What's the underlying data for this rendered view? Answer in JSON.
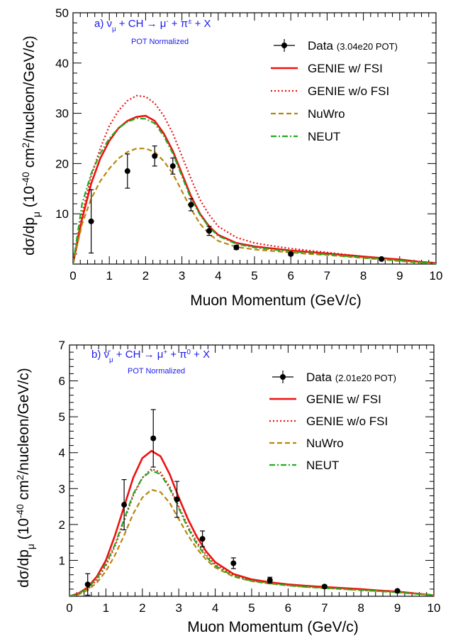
{
  "chart_data": [
    {
      "type": "line",
      "panel_label": "a)",
      "title_segments": [
        {
          "t": "ν",
          "s": "n"
        },
        {
          "t": "μ",
          "s": "sub"
        },
        {
          "t": " + CH → μ",
          "s": "n"
        },
        {
          "t": "-",
          "s": "sup"
        },
        {
          "t": " + π",
          "s": "n"
        },
        {
          "t": "±",
          "s": "sup"
        },
        {
          "t": " + X",
          "s": "n"
        }
      ],
      "subtitle": "POT Normalized",
      "xlabel": "Muon Momentum (GeV/c)",
      "ylabel_segments": [
        {
          "t": "dσ/dp",
          "s": "n"
        },
        {
          "t": "μ",
          "s": "sub"
        },
        {
          "t": "  (10",
          "s": "n"
        },
        {
          "t": "-40",
          "s": "sup"
        },
        {
          "t": " cm",
          "s": "n"
        },
        {
          "t": "2",
          "s": "sup"
        },
        {
          "t": "/nucleon/GeV/c)",
          "s": "n"
        }
      ],
      "xlim": [
        0,
        10
      ],
      "ylim": [
        0,
        50
      ],
      "x_ticks": [
        0,
        1,
        2,
        3,
        4,
        5,
        6,
        7,
        8,
        9,
        10
      ],
      "y_ticks": [
        10,
        20,
        30,
        40,
        50
      ],
      "x_tick_labels": [
        "0",
        "1",
        "2",
        "3",
        "4",
        "5",
        "6",
        "7",
        "8",
        "9",
        "10"
      ],
      "y_tick_labels": [
        "10",
        "20",
        "30",
        "40",
        "50"
      ],
      "legend_position": "top-right",
      "legend": [
        {
          "key": "data",
          "label": "Data",
          "note": "(3.04e20 POT)"
        },
        {
          "key": "genie_fsi",
          "label": "GENIE w/ FSI",
          "note": ""
        },
        {
          "key": "genie_nofsi",
          "label": "GENIE w/o FSI",
          "note": ""
        },
        {
          "key": "nuwro",
          "label": "NuWro",
          "note": ""
        },
        {
          "key": "neut",
          "label": "NEUT",
          "note": ""
        }
      ],
      "data_points": [
        {
          "x": 0.5,
          "y": 8.5,
          "err": 6.3
        },
        {
          "x": 1.5,
          "y": 18.5,
          "err": 3.4
        },
        {
          "x": 2.25,
          "y": 21.5,
          "err": 2.0
        },
        {
          "x": 2.75,
          "y": 19.5,
          "err": 1.6
        },
        {
          "x": 3.25,
          "y": 11.8,
          "err": 1.2
        },
        {
          "x": 3.75,
          "y": 6.6,
          "err": 0.9
        },
        {
          "x": 4.5,
          "y": 3.3,
          "err": 0.4
        },
        {
          "x": 6.0,
          "y": 2.0,
          "err": 0.3
        },
        {
          "x": 8.5,
          "y": 1.0,
          "err": 0.15
        }
      ],
      "series": [
        {
          "key": "genie_fsi",
          "color": "#ee1111",
          "style": "solid",
          "x": [
            0,
            0.25,
            0.5,
            0.75,
            1,
            1.25,
            1.5,
            1.75,
            2,
            2.25,
            2.5,
            2.75,
            3,
            3.25,
            3.5,
            3.75,
            4,
            4.5,
            5,
            5.5,
            6,
            6.5,
            7,
            7.5,
            8,
            8.5,
            9,
            9.5,
            10
          ],
          "y": [
            0,
            9,
            16,
            21,
            24.5,
            27,
            28.5,
            29.3,
            29.5,
            28.5,
            26,
            22.5,
            18,
            13.5,
            10,
            7.5,
            5.8,
            4.2,
            3.5,
            3.1,
            2.7,
            2.4,
            2.1,
            1.8,
            1.5,
            1.2,
            0.9,
            0.5,
            0.2
          ]
        },
        {
          "key": "genie_nofsi",
          "color": "#ee1111",
          "style": "dotted",
          "x": [
            0,
            0.25,
            0.5,
            0.75,
            1,
            1.25,
            1.5,
            1.75,
            2,
            2.25,
            2.5,
            2.75,
            3,
            3.25,
            3.5,
            3.75,
            4,
            4.5,
            5,
            5.5,
            6,
            6.5,
            7,
            7.5,
            8,
            8.5,
            9,
            9.5,
            10
          ],
          "y": [
            0,
            10,
            17.5,
            23,
            27.5,
            30.5,
            32.5,
            33.5,
            33.3,
            32,
            29.5,
            26,
            21.5,
            17,
            12.8,
            9.8,
            7.5,
            5.3,
            4.2,
            3.6,
            3.1,
            2.7,
            2.3,
            1.9,
            1.5,
            1.1,
            0.8,
            0.4,
            0.1
          ]
        },
        {
          "key": "nuwro",
          "color": "#b8860b",
          "style": "dashed",
          "x": [
            0,
            0.25,
            0.5,
            0.75,
            1,
            1.25,
            1.5,
            1.75,
            2,
            2.25,
            2.5,
            2.75,
            3,
            3.25,
            3.5,
            3.75,
            4,
            4.5,
            5,
            5.5,
            6,
            6.5,
            7,
            7.5,
            8,
            8.5,
            9,
            9.5,
            10
          ],
          "y": [
            0,
            8,
            13,
            16.5,
            19,
            21,
            22.3,
            23,
            23,
            22.3,
            20.5,
            18,
            14.5,
            11,
            8,
            6,
            4.6,
            3.4,
            2.9,
            2.6,
            2.3,
            2,
            1.8,
            1.5,
            1.2,
            0.9,
            0.6,
            0.3,
            0.1
          ]
        },
        {
          "key": "neut",
          "color": "#22aa22",
          "style": "dashdot",
          "x": [
            0,
            0.25,
            0.5,
            0.75,
            1,
            1.25,
            1.5,
            1.75,
            2,
            2.25,
            2.5,
            2.75,
            3,
            3.25,
            3.5,
            3.75,
            4,
            4.5,
            5,
            5.5,
            6,
            6.5,
            7,
            7.5,
            8,
            8.5,
            9,
            9.5,
            10
          ],
          "y": [
            0,
            12,
            18,
            22,
            25,
            27,
            28.3,
            29,
            28.9,
            28,
            25.5,
            22,
            17.5,
            13,
            9.8,
            7.3,
            5.6,
            4,
            3.3,
            2.9,
            2.5,
            2.2,
            1.9,
            1.6,
            1.3,
            1,
            0.7,
            0.4,
            0.1
          ]
        }
      ]
    },
    {
      "type": "line",
      "panel_label": "b)",
      "title_segments": [
        {
          "t": "ν̄",
          "s": "n"
        },
        {
          "t": "μ",
          "s": "sub"
        },
        {
          "t": " + CH → μ",
          "s": "n"
        },
        {
          "t": "+",
          "s": "sup"
        },
        {
          "t": " + π",
          "s": "n"
        },
        {
          "t": "0",
          "s": "sup"
        },
        {
          "t": " + X",
          "s": "n"
        }
      ],
      "subtitle": "POT Normalized",
      "xlabel": "Muon Momentum (GeV/c)",
      "ylabel_segments": [
        {
          "t": "dσ/dp",
          "s": "n"
        },
        {
          "t": "μ",
          "s": "sub"
        },
        {
          "t": "  (10",
          "s": "n"
        },
        {
          "t": "-40",
          "s": "sup"
        },
        {
          "t": " cm",
          "s": "n"
        },
        {
          "t": "2",
          "s": "sup"
        },
        {
          "t": "/nucleon/GeV/c)",
          "s": "n"
        }
      ],
      "xlim": [
        0,
        10
      ],
      "ylim": [
        0,
        7
      ],
      "x_ticks": [
        0,
        1,
        2,
        3,
        4,
        5,
        6,
        7,
        8,
        9,
        10
      ],
      "y_ticks": [
        1,
        2,
        3,
        4,
        5,
        6,
        7
      ],
      "x_tick_labels": [
        "0",
        "1",
        "2",
        "3",
        "4",
        "5",
        "6",
        "7",
        "8",
        "9",
        "10"
      ],
      "y_tick_labels": [
        "1",
        "2",
        "3",
        "4",
        "5",
        "6",
        "7"
      ],
      "legend_position": "top-right",
      "legend": [
        {
          "key": "data",
          "label": "Data",
          "note": "(2.01e20 POT)"
        },
        {
          "key": "genie_fsi",
          "label": "GENIE w/ FSI",
          "note": ""
        },
        {
          "key": "genie_nofsi",
          "label": "GENIE w/o FSI",
          "note": ""
        },
        {
          "key": "nuwro",
          "label": "NuWro",
          "note": ""
        },
        {
          "key": "neut",
          "label": "NEUT",
          "note": ""
        }
      ],
      "data_points": [
        {
          "x": 0.5,
          "y": 0.33,
          "err": 0.3
        },
        {
          "x": 1.5,
          "y": 2.55,
          "err": 0.7
        },
        {
          "x": 2.3,
          "y": 4.4,
          "err": 0.8
        },
        {
          "x": 2.95,
          "y": 2.7,
          "err": 0.5
        },
        {
          "x": 3.65,
          "y": 1.6,
          "err": 0.22
        },
        {
          "x": 4.5,
          "y": 0.92,
          "err": 0.15
        },
        {
          "x": 5.5,
          "y": 0.45,
          "err": 0.08
        },
        {
          "x": 7.0,
          "y": 0.27,
          "err": 0.04
        },
        {
          "x": 9.0,
          "y": 0.15,
          "err": 0.03
        }
      ],
      "series": [
        {
          "key": "genie_fsi",
          "color": "#ee1111",
          "style": "solid",
          "x": [
            0,
            0.25,
            0.5,
            0.75,
            1,
            1.25,
            1.5,
            1.75,
            2,
            2.25,
            2.5,
            2.75,
            3,
            3.25,
            3.5,
            3.75,
            4,
            4.5,
            5,
            5.5,
            6,
            6.5,
            7,
            7.5,
            8,
            8.5,
            9,
            9.5,
            10
          ],
          "y": [
            0,
            0.08,
            0.25,
            0.55,
            1.0,
            1.7,
            2.5,
            3.3,
            3.85,
            4.05,
            3.9,
            3.4,
            2.75,
            2.15,
            1.65,
            1.25,
            0.95,
            0.62,
            0.47,
            0.39,
            0.33,
            0.29,
            0.26,
            0.23,
            0.2,
            0.16,
            0.13,
            0.08,
            0.03
          ]
        },
        {
          "key": "genie_nofsi",
          "color": "#ee1111",
          "style": "dotted",
          "x": [
            0,
            0.25,
            0.5,
            0.75,
            1,
            1.25,
            1.5,
            1.75,
            2,
            2.25,
            2.5,
            2.75,
            3,
            3.25,
            3.5,
            3.75,
            4,
            4.5,
            5,
            5.5,
            6,
            6.5,
            7,
            7.5,
            8,
            8.5,
            9,
            9.5,
            10
          ],
          "y": [
            0,
            0.06,
            0.2,
            0.45,
            0.85,
            1.4,
            2.1,
            2.8,
            3.3,
            3.55,
            3.45,
            3.05,
            2.5,
            1.95,
            1.5,
            1.15,
            0.88,
            0.58,
            0.44,
            0.37,
            0.31,
            0.27,
            0.24,
            0.21,
            0.18,
            0.15,
            0.12,
            0.07,
            0.03
          ]
        },
        {
          "key": "nuwro",
          "color": "#b8860b",
          "style": "dashed",
          "x": [
            0,
            0.25,
            0.5,
            0.75,
            1,
            1.25,
            1.5,
            1.75,
            2,
            2.25,
            2.5,
            2.75,
            3,
            3.25,
            3.5,
            3.75,
            4,
            4.5,
            5,
            5.5,
            6,
            6.5,
            7,
            7.5,
            8,
            8.5,
            9,
            9.5,
            10
          ],
          "y": [
            0,
            0.05,
            0.17,
            0.38,
            0.7,
            1.15,
            1.7,
            2.3,
            2.75,
            2.97,
            2.9,
            2.6,
            2.15,
            1.7,
            1.32,
            1.02,
            0.8,
            0.55,
            0.42,
            0.35,
            0.3,
            0.26,
            0.23,
            0.2,
            0.17,
            0.14,
            0.11,
            0.07,
            0.03
          ]
        },
        {
          "key": "neut",
          "color": "#22aa22",
          "style": "dashdot",
          "x": [
            0,
            0.25,
            0.5,
            0.75,
            1,
            1.25,
            1.5,
            1.75,
            2,
            2.25,
            2.5,
            2.75,
            3,
            3.25,
            3.5,
            3.75,
            4,
            4.5,
            5,
            5.5,
            6,
            6.5,
            7,
            7.5,
            8,
            8.5,
            9,
            9.5,
            10
          ],
          "y": [
            0,
            0.07,
            0.23,
            0.5,
            0.9,
            1.45,
            2.15,
            2.85,
            3.3,
            3.5,
            3.4,
            3.0,
            2.45,
            1.9,
            1.45,
            1.1,
            0.85,
            0.56,
            0.43,
            0.36,
            0.3,
            0.26,
            0.23,
            0.2,
            0.17,
            0.14,
            0.11,
            0.07,
            0.03
          ]
        }
      ]
    }
  ]
}
